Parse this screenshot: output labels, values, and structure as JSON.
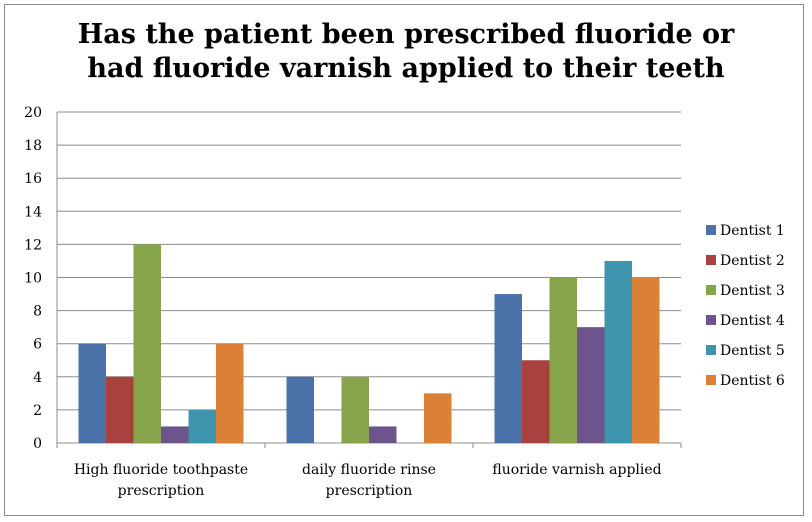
{
  "chart_data": {
    "type": "bar",
    "title_lines": [
      "Has the patient been prescribed fluoride or",
      "had fluoride varnish applied to their teeth"
    ],
    "categories": [
      [
        "High fluoride toothpaste",
        "prescription"
      ],
      [
        "daily fluoride rinse",
        "prescription"
      ],
      [
        "fluoride varnish applied"
      ]
    ],
    "series": [
      {
        "name": "Dentist 1",
        "color": "#4a72a9",
        "values": [
          6,
          4,
          9
        ]
      },
      {
        "name": "Dentist 2",
        "color": "#a8423f",
        "values": [
          4,
          0,
          5
        ]
      },
      {
        "name": "Dentist 3",
        "color": "#86a44a",
        "values": [
          12,
          4,
          10
        ]
      },
      {
        "name": "Dentist 4",
        "color": "#6e548d",
        "values": [
          1,
          1,
          7
        ]
      },
      {
        "name": "Dentist 5",
        "color": "#3d96ae",
        "values": [
          2,
          0,
          11
        ]
      },
      {
        "name": "Dentist 6",
        "color": "#da8137",
        "values": [
          6,
          3,
          10
        ]
      }
    ],
    "ylim": [
      0,
      20
    ],
    "yticks": [
      0,
      2,
      4,
      6,
      8,
      10,
      12,
      14,
      16,
      18,
      20
    ],
    "grid": true,
    "legend": "right"
  }
}
